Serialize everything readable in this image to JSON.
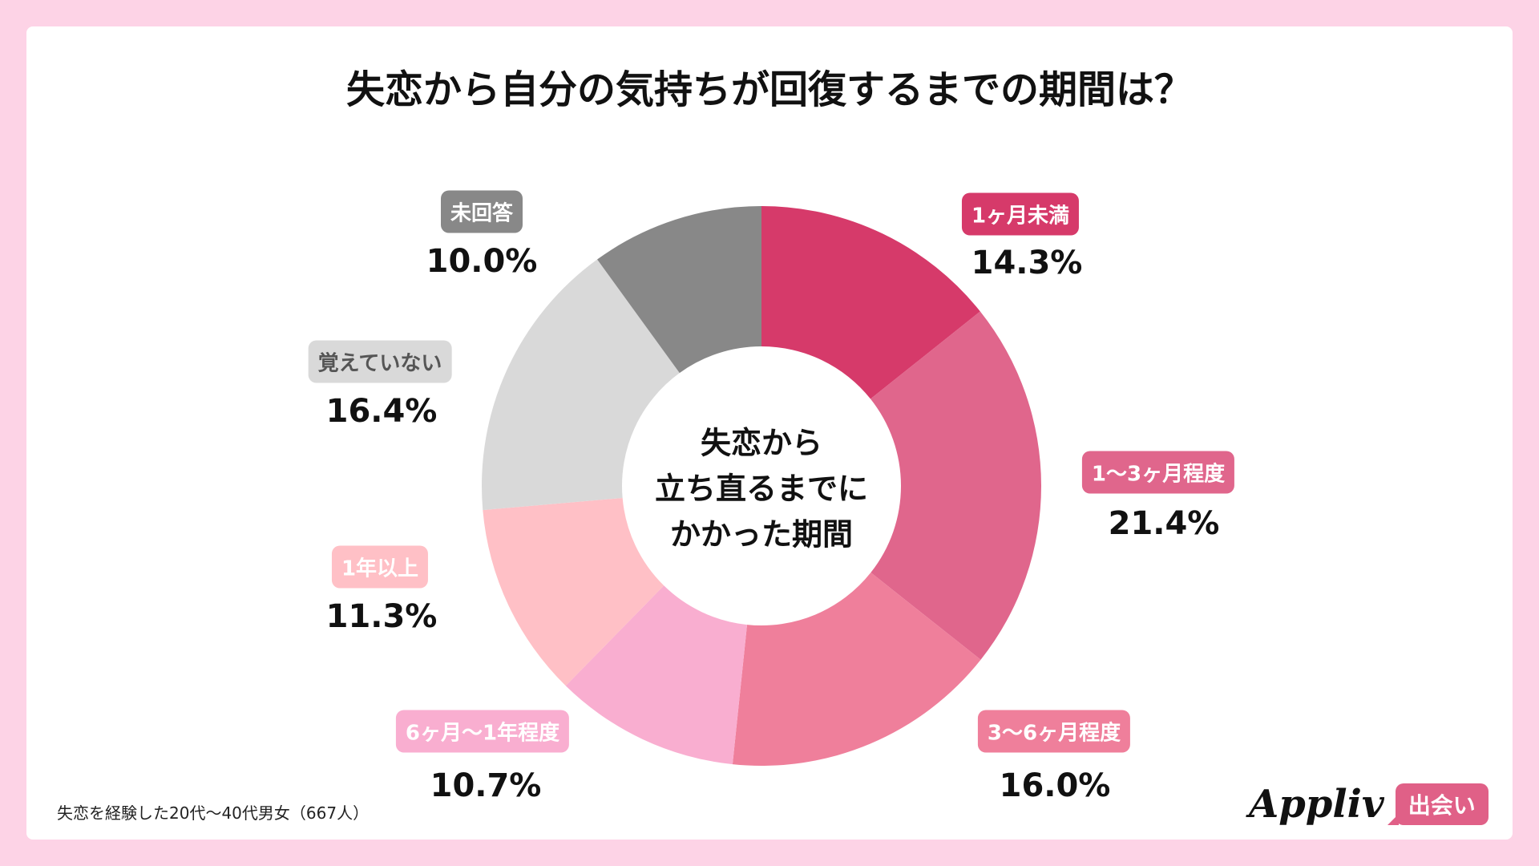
{
  "chart_data": {
    "type": "pie",
    "variant": "donut",
    "title": "失恋から自分の気持ちが回復するまでの期間は？",
    "center_text": [
      "失恋から",
      "立ち直るまでに",
      "かかった期間"
    ],
    "categories": [
      "1ヶ月未満",
      "1〜3ヶ月程度",
      "3〜6ヶ月程度",
      "6ヶ月〜1年程度",
      "1年以上",
      "覚えていない",
      "未回答"
    ],
    "values": [
      14.3,
      21.4,
      16.0,
      10.7,
      11.3,
      16.4,
      10.0
    ],
    "value_labels": [
      "14.3%",
      "21.4%",
      "16.0%",
      "10.7%",
      "11.3%",
      "16.4%",
      "10.0%"
    ],
    "colors": [
      "#d63a6a",
      "#e0668c",
      "#ef7f9b",
      "#f9aed0",
      "#ffc0c6",
      "#d9d9d9",
      "#888888"
    ],
    "label_text_colors": [
      "#ffffff",
      "#ffffff",
      "#ffffff",
      "#ffffff",
      "#ffffff",
      "#555555",
      "#ffffff"
    ],
    "start": "top",
    "direction": "clockwise"
  },
  "footnote": "失恋を経験した20代〜40代男女（667人）",
  "logo": {
    "word": "Appliv",
    "badge": "出会い"
  }
}
